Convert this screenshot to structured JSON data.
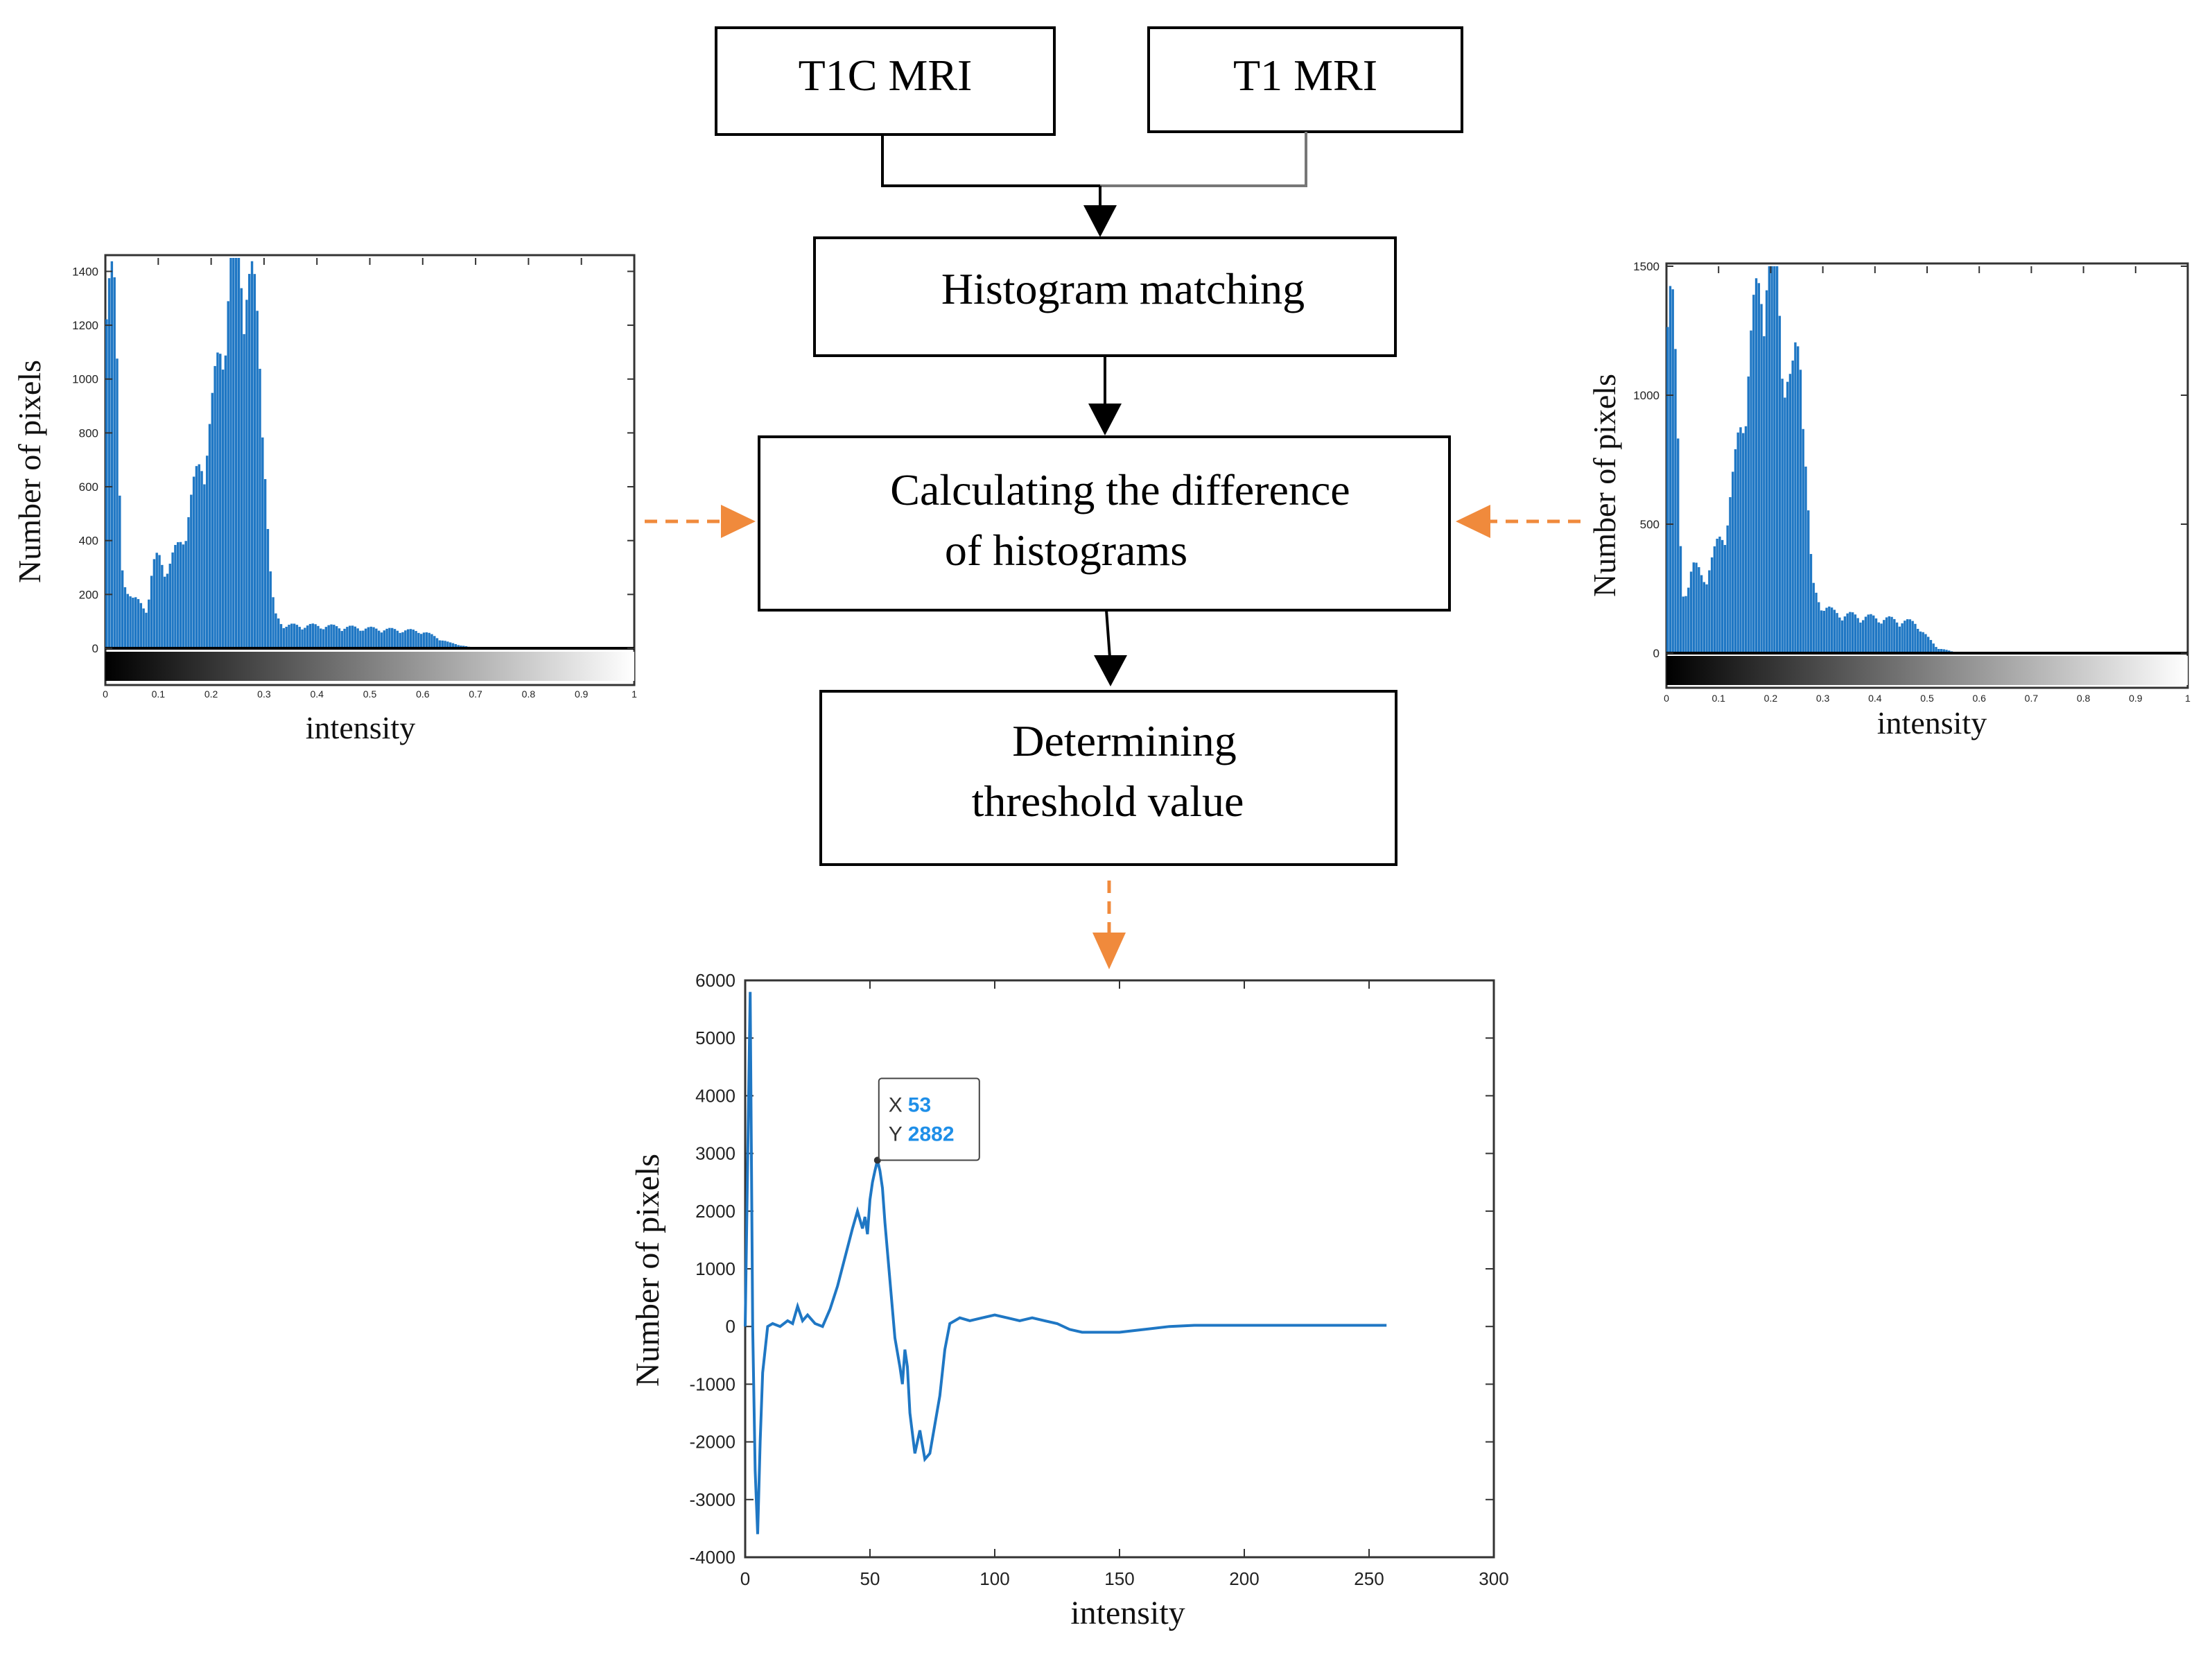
{
  "flowchart": {
    "input_left": "T1C MRI",
    "input_right": "T1 MRI",
    "step_matching": "Histogram matching",
    "step_difference": [
      "Calculating the difference",
      "of histograms"
    ],
    "step_threshold": [
      "Determining",
      "threshold value"
    ]
  },
  "colors": {
    "series": "#1f77c4",
    "dashed_arrow": "#f08a3c",
    "box_border": "#000000"
  },
  "chart_data": [
    {
      "type": "bar",
      "ylabel": "Number of pixels",
      "xlabel": "intensity",
      "xlim": [
        0,
        1
      ],
      "ylim": [
        -150,
        1450
      ],
      "xticks": [
        "0",
        "0.1",
        "0.2",
        "0.3",
        "0.4",
        "0.5",
        "0.6",
        "0.7",
        "0.8",
        "0.9",
        "1"
      ],
      "yticks": [
        "0",
        "200",
        "400",
        "600",
        "800",
        "1000",
        "1200",
        "1400"
      ],
      "colorbar": "grayscale",
      "profile": {
        "x": [
          0,
          0.01,
          0.02,
          0.03,
          0.05,
          0.08,
          0.09,
          0.1,
          0.12,
          0.14,
          0.16,
          0.18,
          0.2,
          0.22,
          0.24,
          0.25,
          0.26,
          0.27,
          0.28,
          0.29,
          0.3,
          0.31,
          0.32,
          0.34,
          0.4,
          0.5,
          0.6,
          0.65,
          0.7,
          0.75,
          1.0
        ],
        "y": [
          1450,
          1400,
          1150,
          300,
          170,
          150,
          280,
          320,
          290,
          360,
          500,
          650,
          800,
          1100,
          1350,
          1400,
          1380,
          1300,
          1250,
          1100,
          800,
          300,
          120,
          80,
          80,
          70,
          60,
          20,
          0,
          0,
          0
        ]
      }
    },
    {
      "type": "bar",
      "ylabel": "Number of pixels",
      "xlabel": "intensity",
      "xlim": [
        0,
        1
      ],
      "ylim": [
        0,
        1500
      ],
      "xticks": [
        "0",
        "0.1",
        "0.2",
        "0.3",
        "0.4",
        "0.5",
        "0.6",
        "0.7",
        "0.8",
        "0.9",
        "1"
      ],
      "yticks": [
        "0",
        "500",
        "1000",
        "1500"
      ],
      "colorbar": "grayscale",
      "profile": {
        "x": [
          0,
          0.01,
          0.02,
          0.03,
          0.05,
          0.07,
          0.09,
          0.11,
          0.13,
          0.15,
          0.17,
          0.19,
          0.2,
          0.21,
          0.22,
          0.23,
          0.24,
          0.25,
          0.26,
          0.27,
          0.28,
          0.29,
          0.3,
          0.32,
          0.35,
          0.4,
          0.45,
          0.48,
          0.5,
          0.52,
          0.55,
          0.6,
          1.0
        ],
        "y": [
          1500,
          1450,
          900,
          200,
          320,
          280,
          350,
          450,
          650,
          950,
          1250,
          1450,
          1500,
          1480,
          1200,
          1050,
          950,
          1100,
          1150,
          600,
          250,
          200,
          180,
          150,
          140,
          130,
          120,
          110,
          60,
          20,
          5,
          0,
          0
        ]
      }
    },
    {
      "type": "line",
      "xlabel": "intensity",
      "ylabel": "Number of pixels",
      "xlim": [
        0,
        300
      ],
      "ylim": [
        -4000,
        6000
      ],
      "xticks": [
        "0",
        "50",
        "100",
        "150",
        "200",
        "250",
        "300"
      ],
      "yticks": [
        "-4000",
        "-3000",
        "-2000",
        "-1000",
        "0",
        "1000",
        "2000",
        "3000",
        "4000",
        "5000",
        "6000"
      ],
      "x": [
        0,
        2,
        3,
        4,
        5,
        6,
        7,
        9,
        11,
        14,
        17,
        19,
        21,
        23,
        25,
        28,
        31,
        34,
        37,
        40,
        43,
        45,
        47,
        48,
        49,
        50,
        51,
        52,
        53,
        54,
        55,
        56,
        58,
        60,
        62,
        63,
        64,
        65,
        66,
        68,
        70,
        72,
        74,
        76,
        78,
        80,
        82,
        84,
        86,
        90,
        95,
        100,
        105,
        110,
        115,
        120,
        125,
        130,
        135,
        140,
        150,
        160,
        170,
        180,
        190,
        200,
        220,
        240,
        257
      ],
      "y": [
        0,
        5800,
        0,
        -2500,
        -3600,
        -2000,
        -800,
        0,
        50,
        0,
        100,
        50,
        350,
        100,
        200,
        50,
        0,
        300,
        700,
        1200,
        1700,
        2000,
        1700,
        1900,
        1600,
        2200,
        2500,
        2700,
        2882,
        2700,
        2400,
        1800,
        800,
        -200,
        -700,
        -1000,
        -400,
        -700,
        -1500,
        -2200,
        -1800,
        -2300,
        -2200,
        -1700,
        -1200,
        -400,
        50,
        100,
        150,
        100,
        150,
        200,
        150,
        100,
        150,
        100,
        50,
        -50,
        -100,
        -100,
        -100,
        -50,
        0,
        20,
        20,
        20,
        20,
        20,
        20
      ],
      "tooltip": {
        "x_key": "X",
        "x_value": "53",
        "y_key": "Y",
        "y_value": "2882"
      }
    }
  ]
}
